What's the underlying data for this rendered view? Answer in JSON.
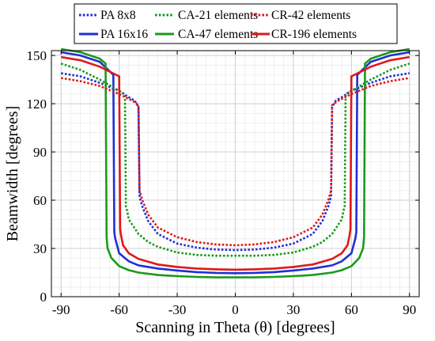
{
  "chart_data": {
    "type": "line",
    "xlabel": "Scanning in Theta (θ) [degrees]",
    "ylabel": "Beamwidth [degrees]",
    "xlim": [
      -95,
      95
    ],
    "ylim": [
      0,
      153
    ],
    "xticks": [
      -90,
      -60,
      -30,
      0,
      30,
      60,
      90
    ],
    "yticks": [
      0,
      30,
      60,
      90,
      120,
      150
    ],
    "grid": "major and minor",
    "legend_position": "top",
    "series": [
      {
        "name": "PA 8x8",
        "color": "#1f2fd6",
        "dash": "dotted",
        "x": [
          -90,
          -80,
          -70,
          -60,
          -55,
          -52,
          -50,
          -49.5,
          -49,
          -48,
          -45,
          -40,
          -30,
          -20,
          -10,
          0,
          10,
          20,
          30,
          40,
          45,
          48,
          49,
          49.5,
          50,
          52,
          55,
          60,
          70,
          80,
          90
        ],
        "y": [
          139,
          137,
          133,
          128,
          124,
          122,
          118,
          63,
          60,
          56,
          47,
          39,
          33,
          30.5,
          29.3,
          29,
          29.3,
          30.5,
          33,
          39,
          47,
          56,
          60,
          63,
          118,
          122,
          124,
          128,
          133,
          137,
          139
        ]
      },
      {
        "name": "PA 16x16",
        "color": "#1f2fd6",
        "dash": "solid",
        "x": [
          -90,
          -80,
          -70,
          -63,
          -62.5,
          -62,
          -60,
          -55,
          -50,
          -40,
          -30,
          -20,
          -10,
          0,
          10,
          20,
          30,
          40,
          50,
          55,
          60,
          62,
          62.5,
          63,
          70,
          80,
          90
        ],
        "y": [
          152,
          150,
          146,
          138,
          40,
          36,
          27,
          22,
          19.5,
          17.5,
          16.3,
          15.3,
          14.8,
          14.6,
          14.8,
          15.3,
          16.3,
          17.5,
          19.5,
          22,
          27,
          36,
          40,
          138,
          146,
          150,
          152
        ]
      },
      {
        "name": "CA-21 elements",
        "color": "#1a9a1a",
        "dash": "dotted",
        "x": [
          -90,
          -80,
          -70,
          -60,
          -57,
          -56.5,
          -56,
          -55,
          -50,
          -45,
          -40,
          -30,
          -20,
          -10,
          0,
          10,
          20,
          30,
          40,
          45,
          50,
          55,
          56,
          56.5,
          57,
          60,
          70,
          80,
          90
        ],
        "y": [
          145,
          141,
          135,
          128,
          126,
          56,
          54,
          48,
          39,
          34,
          31,
          27.5,
          26,
          25.5,
          25.5,
          25.5,
          26,
          27.5,
          31,
          34,
          39,
          48,
          54,
          56,
          126,
          128,
          135,
          141,
          145
        ]
      },
      {
        "name": "CA-47 elements",
        "color": "#1a9a1a",
        "dash": "solid",
        "x": [
          -90,
          -80,
          -70,
          -67,
          -66.5,
          -66,
          -64,
          -60,
          -55,
          -50,
          -40,
          -30,
          -20,
          -10,
          0,
          10,
          20,
          30,
          40,
          50,
          55,
          60,
          64,
          66,
          66.5,
          67,
          70,
          80,
          90
        ],
        "y": [
          154,
          152,
          148,
          145,
          37,
          30,
          24,
          19,
          16.5,
          15,
          13.5,
          12.8,
          12.3,
          12,
          12,
          12,
          12.3,
          12.8,
          13.5,
          15,
          16.5,
          19,
          24,
          30,
          37,
          145,
          148,
          152,
          154
        ]
      },
      {
        "name": "CR-42 elements",
        "color": "#e01818",
        "dash": "dotted",
        "x": [
          -90,
          -80,
          -70,
          -60,
          -55,
          -52,
          -50,
          -49.5,
          -49,
          -48,
          -45,
          -40,
          -30,
          -20,
          -10,
          0,
          10,
          20,
          30,
          40,
          45,
          48,
          49,
          49.5,
          50,
          52,
          55,
          60,
          70,
          80,
          90
        ],
        "y": [
          136,
          134,
          131,
          126,
          123,
          121,
          119,
          66,
          64,
          60,
          51,
          43,
          37,
          34,
          32.5,
          32,
          32.5,
          34,
          37,
          43,
          51,
          60,
          64,
          66,
          119,
          121,
          123,
          126,
          131,
          134,
          136
        ]
      },
      {
        "name": "CR-196 elements",
        "color": "#e01818",
        "dash": "solid",
        "x": [
          -90,
          -80,
          -70,
          -60,
          -59.5,
          -59,
          -58,
          -55,
          -50,
          -40,
          -30,
          -20,
          -10,
          0,
          10,
          20,
          30,
          40,
          50,
          55,
          58,
          59,
          59.5,
          60,
          70,
          80,
          90
        ],
        "y": [
          149,
          147,
          143,
          137,
          42,
          38,
          32,
          27,
          23.5,
          20,
          18.5,
          17.5,
          17,
          16.8,
          17,
          17.5,
          18.5,
          20,
          23.5,
          27,
          32,
          38,
          42,
          137,
          143,
          147,
          149
        ]
      }
    ]
  }
}
